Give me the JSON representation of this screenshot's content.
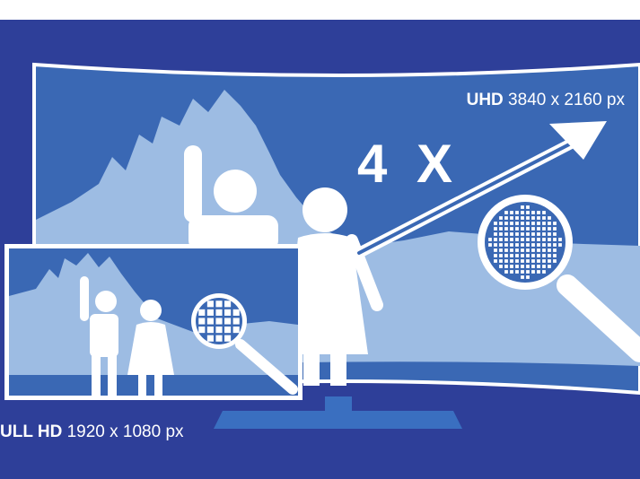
{
  "colors": {
    "background": "#2e3f99",
    "screen_fill": "#3a68b4",
    "mountain": "#9dbce3",
    "frame": "#ffffff",
    "stand": "#3a6fc0"
  },
  "uhd_label": {
    "bold": "UHD",
    "rest": " 3840 x 2160 px"
  },
  "fullhd_label": {
    "bold": "ULL HD",
    "rest": " 1920 x 1080 px"
  },
  "multiplier": "4 X",
  "icons": [
    "person-icon",
    "magnifier-icon",
    "arrow-icon",
    "mountain-icon",
    "tv-stand-icon"
  ]
}
